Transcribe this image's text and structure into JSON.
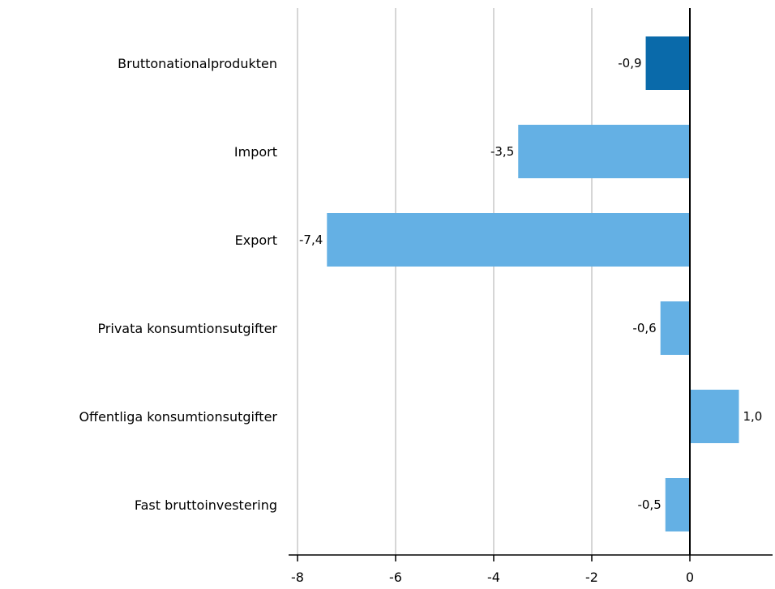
{
  "chart_data": {
    "type": "bar",
    "orientation": "horizontal",
    "categories": [
      "Bruttonationalprodukten",
      "Import",
      "Export",
      "Privata konsumtionsutgifter",
      "Offentliga konsumtionsutgifter",
      "Fast bruttoinvestering"
    ],
    "values": [
      -0.9,
      -3.5,
      -7.4,
      -0.6,
      1.0,
      -0.5
    ],
    "value_labels": [
      "-0,9",
      "-3,5",
      "-7,4",
      "-0,6",
      "1,0",
      "-0,5"
    ],
    "bar_colors": [
      "#0a6aaa",
      "#64b0e4",
      "#64b0e4",
      "#64b0e4",
      "#64b0e4",
      "#64b0e4"
    ],
    "xlim": [
      -8,
      1.5
    ],
    "x_ticks": [
      -8,
      -6,
      -4,
      -2,
      0
    ],
    "x_tick_labels": [
      "-8",
      "-6",
      "-4",
      "-2",
      "0"
    ],
    "grid": true,
    "title": "",
    "xlabel": "",
    "ylabel": ""
  }
}
